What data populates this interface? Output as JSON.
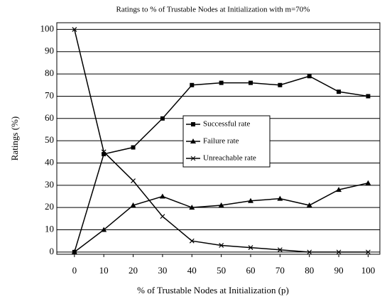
{
  "chart_data": {
    "type": "line",
    "title": "Ratings to % of Trustable Nodes at Initialization with m=70%",
    "x_label": "% of Trustable Nodes at Initialization (p)",
    "y_label": "Ratings (%)",
    "x": [
      0,
      10,
      20,
      30,
      40,
      50,
      60,
      70,
      80,
      90,
      100
    ],
    "series": [
      {
        "name": "Successful rate",
        "color": "#000000",
        "marker": "square",
        "values": [
          0,
          44,
          47,
          60,
          75,
          76,
          76,
          75,
          79,
          72,
          70
        ]
      },
      {
        "name": "Failure rate",
        "color": "#000000",
        "marker": "triangle",
        "values": [
          0,
          10,
          21,
          25,
          20,
          21,
          23,
          24,
          21,
          28,
          31
        ]
      },
      {
        "name": "Unreachable rate",
        "color": "#000000",
        "marker": "x",
        "values": [
          100,
          45,
          32,
          16,
          5,
          3,
          2,
          1,
          0,
          0,
          0
        ]
      }
    ],
    "xlim": [
      -6,
      104
    ],
    "xticks": [
      0,
      10,
      20,
      30,
      40,
      50,
      60,
      70,
      80,
      90,
      100
    ],
    "ylim": [
      -1,
      103
    ],
    "yticks": [
      0,
      10,
      20,
      30,
      40,
      50,
      60,
      70,
      80,
      90,
      100
    ],
    "grid": true,
    "legend": "center"
  }
}
